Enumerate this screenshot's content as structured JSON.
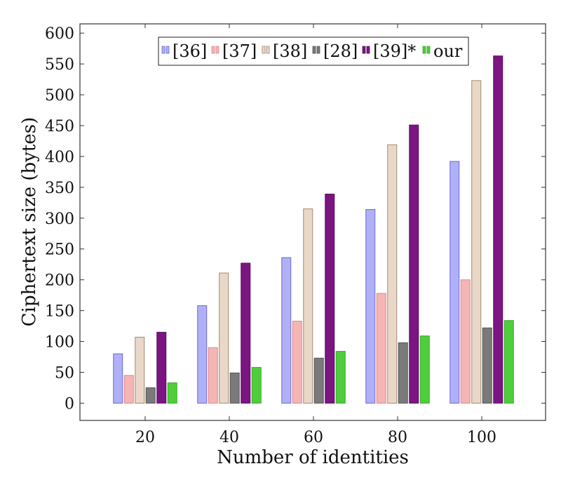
{
  "chart_data": {
    "type": "bar",
    "xlabel": "Number of identities",
    "ylabel": "Ciphertext size (bytes)",
    "categories": [
      "20",
      "40",
      "60",
      "80",
      "100"
    ],
    "ylim": [
      -28,
      615
    ],
    "yticks": [
      "0",
      "50",
      "100",
      "150",
      "200",
      "250",
      "300",
      "350",
      "400",
      "450",
      "500",
      "550",
      "600"
    ],
    "grid": false,
    "legend": "top",
    "series": [
      {
        "name": "[36]",
        "values": [
          80,
          158,
          236,
          314,
          392
        ],
        "fill": "#b0b0f6",
        "stroke": "#6a6ad8"
      },
      {
        "name": "[37]",
        "values": [
          45,
          90,
          133,
          178,
          200
        ],
        "fill": "#f5b5b5",
        "stroke": "#d98a8a"
      },
      {
        "name": "[38]",
        "values": [
          107,
          211,
          315,
          419,
          523
        ],
        "fill": "#e9d8c7",
        "stroke": "#a08a72"
      },
      {
        "name": "[28]",
        "values": [
          25,
          49,
          73,
          98,
          122
        ],
        "fill": "#7a7a7a",
        "stroke": "#555555"
      },
      {
        "name": "[39]*",
        "values": [
          115,
          227,
          339,
          451,
          563
        ],
        "fill": "#7b1582",
        "stroke": "#5a0d60"
      },
      {
        "name": "our",
        "values": [
          33,
          58,
          84,
          109,
          134
        ],
        "fill": "#4fcd3b",
        "stroke": "#3aa82a"
      }
    ]
  }
}
